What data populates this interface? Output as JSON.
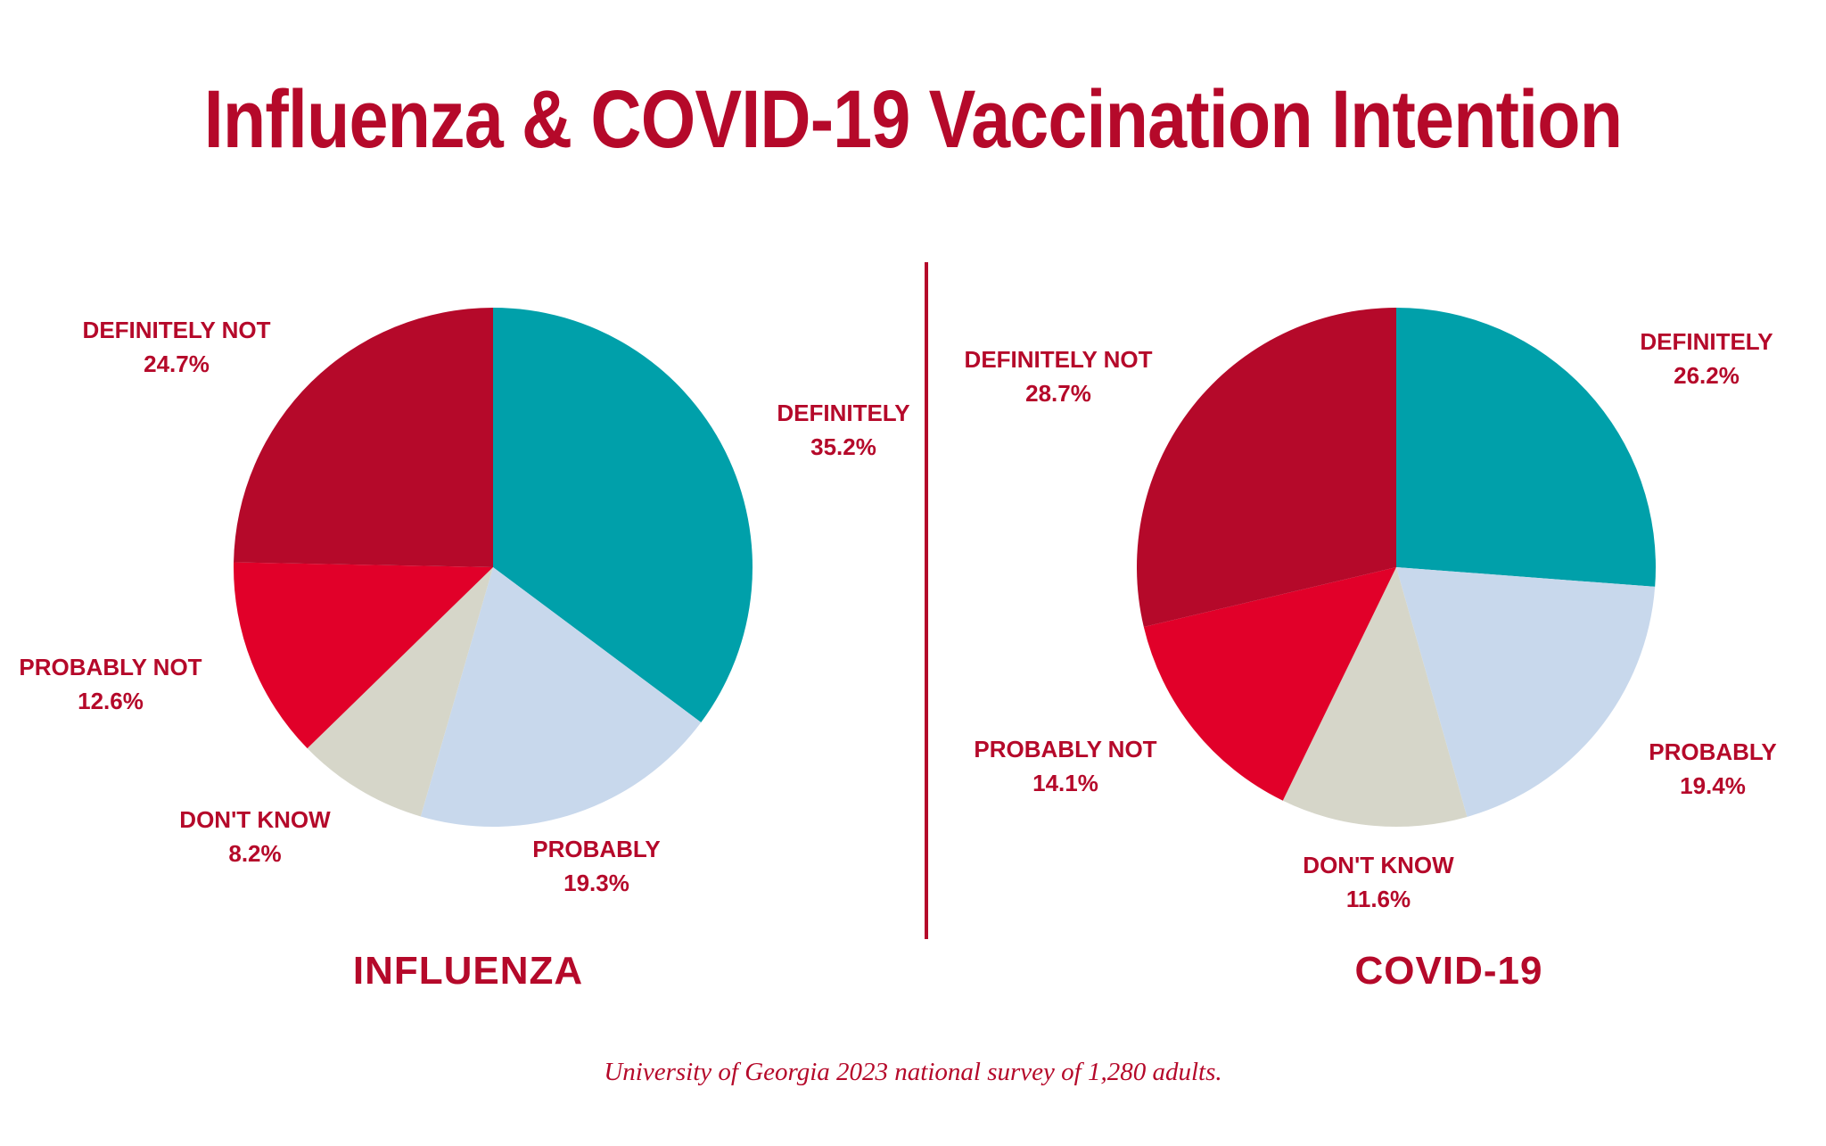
{
  "title": "Influenza & COVID-19 Vaccination Intention",
  "source": "University of Georgia 2023 national survey of 1,280 adults.",
  "colors": {
    "accent": "#b5092a",
    "definitely": "#00a0aa",
    "probably": "#c8d8ec",
    "dont_know": "#d6d6c9",
    "probably_not": "#e10029",
    "definitely_not": "#b5092a"
  },
  "chart_data": [
    {
      "type": "pie",
      "title": "INFLUENZA",
      "categories": [
        "DEFINITELY",
        "PROBABLY",
        "DON'T KNOW",
        "PROBABLY NOT",
        "DEFINITELY NOT"
      ],
      "values": [
        35.2,
        19.3,
        8.2,
        12.6,
        24.7
      ],
      "value_labels": [
        "35.2%",
        "19.3%",
        "8.2%",
        "12.6%",
        "24.7%"
      ],
      "start": "12 o'clock, clockwise"
    },
    {
      "type": "pie",
      "title": "COVID-19",
      "categories": [
        "DEFINITELY",
        "PROBABLY",
        "DON'T KNOW",
        "PROBABLY NOT",
        "DEFINITELY NOT"
      ],
      "values": [
        26.2,
        19.4,
        11.6,
        14.1,
        28.7
      ],
      "value_labels": [
        "26.2%",
        "19.4%",
        "11.6%",
        "14.1%",
        "28.7%"
      ],
      "start": "12 o'clock, clockwise"
    }
  ]
}
